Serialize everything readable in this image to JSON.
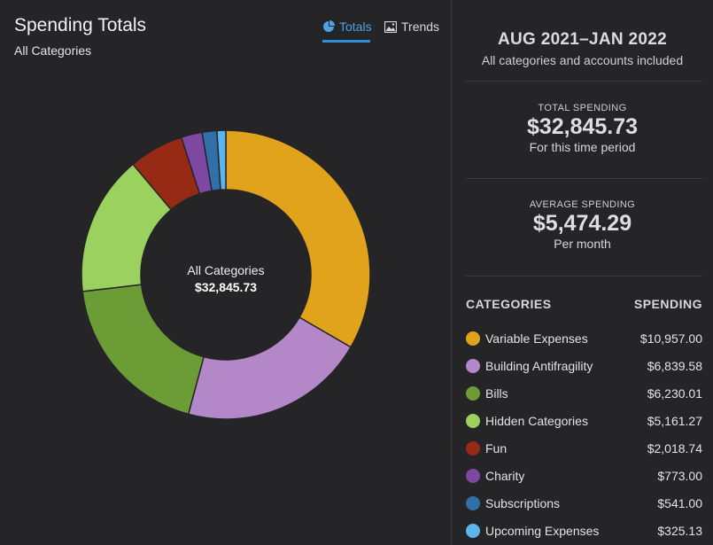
{
  "header": {
    "title": "Spending Totals",
    "subtitle": "All Categories",
    "tabs": [
      {
        "label": "Totals",
        "icon": "pie-chart-icon",
        "active": true
      },
      {
        "label": "Trends",
        "icon": "image-chart-icon",
        "active": false
      }
    ]
  },
  "chart_center": {
    "label": "All Categories",
    "value": "$32,845.73"
  },
  "summary": {
    "period": "AUG 2021–JAN 2022",
    "period_note": "All categories and accounts included",
    "total": {
      "caption": "TOTAL SPENDING",
      "value": "$32,845.73",
      "note": "For this time period"
    },
    "average": {
      "caption": "AVERAGE SPENDING",
      "value": "$5,474.29",
      "note": "Per month"
    }
  },
  "categories_header": {
    "name": "CATEGORIES",
    "amount": "SPENDING"
  },
  "colors": {
    "accent": "#2f8ed8",
    "background": "#252528"
  },
  "chart_data": {
    "type": "pie",
    "donut": true,
    "categories": [
      "Variable Expenses",
      "Building Antifragility",
      "Bills",
      "Hidden Categories",
      "Fun",
      "Charity",
      "Subscriptions",
      "Upcoming Expenses"
    ],
    "values": [
      10957.0,
      6839.58,
      6230.01,
      5161.27,
      2018.74,
      773.0,
      541.0,
      325.13
    ],
    "labels": [
      "$10,957.00",
      "$6,839.58",
      "$6,230.01",
      "$5,161.27",
      "$2,018.74",
      "$773.00",
      "$541.00",
      "$325.13"
    ],
    "colors": [
      "#e0a31b",
      "#b487c9",
      "#6b9c36",
      "#9bd15f",
      "#962a14",
      "#7d48a1",
      "#326fa8",
      "#5bb6ee"
    ]
  }
}
